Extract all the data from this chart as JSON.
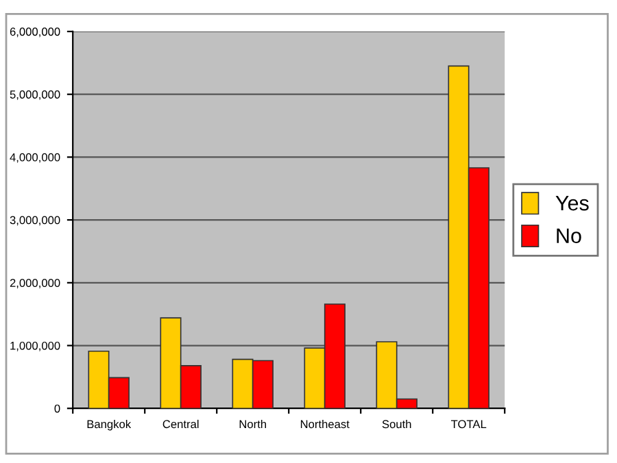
{
  "chart_data": {
    "type": "bar",
    "categories": [
      "Bangkok",
      "Central",
      "North",
      "Northeast",
      "South",
      "TOTAL"
    ],
    "series": [
      {
        "name": "Yes",
        "color": "#ffcc00",
        "values": [
          910000,
          1440000,
          780000,
          960000,
          1060000,
          5450000
        ]
      },
      {
        "name": "No",
        "color": "#ff0000",
        "values": [
          490000,
          680000,
          760000,
          1660000,
          150000,
          3830000
        ]
      }
    ],
    "ylim": [
      0,
      6000000
    ],
    "yticks": [
      {
        "value": 0,
        "label": "0"
      },
      {
        "value": 1000000,
        "label": "1,000,000"
      },
      {
        "value": 2000000,
        "label": "2,000,000"
      },
      {
        "value": 3000000,
        "label": "3,000,000"
      },
      {
        "value": 4000000,
        "label": "4,000,000"
      },
      {
        "value": 5000000,
        "label": "5,000,000"
      },
      {
        "value": 6000000,
        "label": "6,000,000"
      }
    ],
    "grid": "y",
    "legend": "right"
  }
}
